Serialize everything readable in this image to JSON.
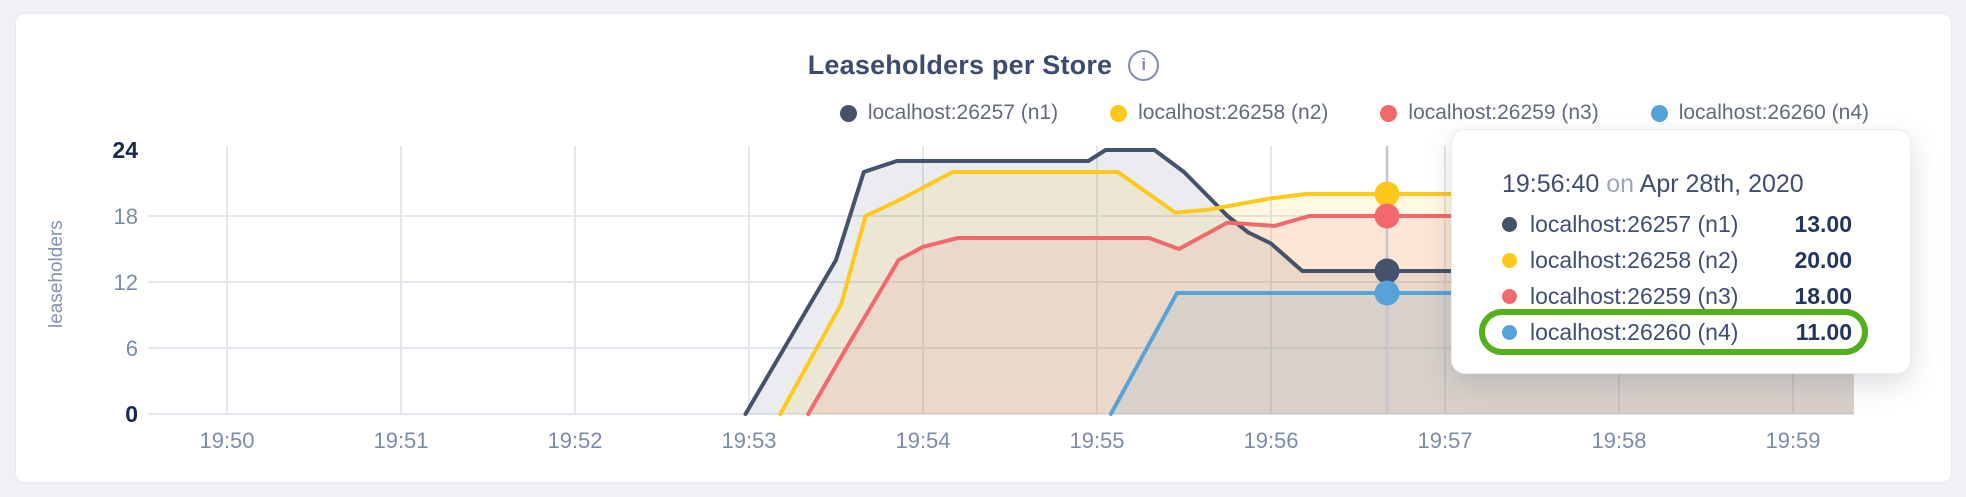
{
  "chart_data": {
    "type": "area",
    "title": "Leaseholders per Store",
    "info_icon_glyph": "i",
    "xlabel": "",
    "ylabel": "leaseholders",
    "ylim": [
      0,
      24
    ],
    "grid": true,
    "legend_position": "top-right",
    "x_ticks": [
      {
        "label": "19:50",
        "t": 50
      },
      {
        "label": "19:51",
        "t": 51
      },
      {
        "label": "19:52",
        "t": 52
      },
      {
        "label": "19:53",
        "t": 53
      },
      {
        "label": "19:54",
        "t": 54
      },
      {
        "label": "19:55",
        "t": 55
      },
      {
        "label": "19:56",
        "t": 56
      },
      {
        "label": "19:57",
        "t": 57
      },
      {
        "label": "19:58",
        "t": 58
      },
      {
        "label": "19:59",
        "t": 59
      }
    ],
    "y_ticks": [
      {
        "label": "0",
        "v": 0,
        "bold": true
      },
      {
        "label": "6",
        "v": 6,
        "bold": false
      },
      {
        "label": "12",
        "v": 12,
        "bold": false
      },
      {
        "label": "18",
        "v": 18,
        "bold": false
      },
      {
        "label": "24",
        "v": 24,
        "bold": true
      }
    ],
    "y_gridlines": [
      6,
      12,
      18
    ],
    "x_end_minutes": 59.35,
    "hover": {
      "time_minutes": 56.6667
    },
    "series": [
      {
        "name": "localhost:26257 (n1)",
        "color": "#44526b",
        "hover_value": 13,
        "points": [
          [
            52.98,
            0
          ],
          [
            53.5,
            14
          ],
          [
            53.66,
            22
          ],
          [
            53.85,
            23
          ],
          [
            54.95,
            23
          ],
          [
            55.05,
            24
          ],
          [
            55.33,
            24
          ],
          [
            55.5,
            22
          ],
          [
            55.75,
            18
          ],
          [
            55.87,
            16.5
          ],
          [
            56.0,
            15.5
          ],
          [
            56.18,
            13
          ],
          [
            59.35,
            13
          ]
        ]
      },
      {
        "name": "localhost:26258 (n2)",
        "color": "#ffc81a",
        "hover_value": 20,
        "points": [
          [
            53.18,
            0
          ],
          [
            53.53,
            10
          ],
          [
            53.67,
            18
          ],
          [
            53.87,
            19.5
          ],
          [
            54.17,
            22
          ],
          [
            55.12,
            22
          ],
          [
            55.45,
            18.3
          ],
          [
            55.65,
            18.6
          ],
          [
            56.0,
            19.6
          ],
          [
            56.2,
            20
          ],
          [
            59.35,
            20
          ]
        ]
      },
      {
        "name": "localhost:26259 (n3)",
        "color": "#f1696c",
        "hover_value": 18,
        "points": [
          [
            53.34,
            0
          ],
          [
            53.56,
            6
          ],
          [
            53.86,
            14
          ],
          [
            54.0,
            15.2
          ],
          [
            54.2,
            16
          ],
          [
            55.3,
            16
          ],
          [
            55.47,
            15
          ],
          [
            55.75,
            17.4
          ],
          [
            56.02,
            17.1
          ],
          [
            56.22,
            18
          ],
          [
            59.35,
            18
          ]
        ]
      },
      {
        "name": "localhost:26260 (n4)",
        "color": "#55a3d8",
        "hover_value": 11,
        "points": [
          [
            55.08,
            0
          ],
          [
            55.46,
            11
          ],
          [
            59.35,
            11
          ]
        ]
      }
    ]
  },
  "tooltip": {
    "time": "19:56:40",
    "preposition": "on",
    "date": "Apr 28th, 2020",
    "rows": [
      {
        "label": "localhost:26257 (n1)",
        "value": "13.00",
        "color": "#44526b"
      },
      {
        "label": "localhost:26258 (n2)",
        "value": "20.00",
        "color": "#ffc81a"
      },
      {
        "label": "localhost:26259 (n3)",
        "value": "18.00",
        "color": "#f1696c"
      },
      {
        "label": "localhost:26260 (n4)",
        "value": "11.00",
        "color": "#55a3d8"
      }
    ],
    "highlighted_row_index": 3,
    "highlight_color": "#52b01e"
  }
}
